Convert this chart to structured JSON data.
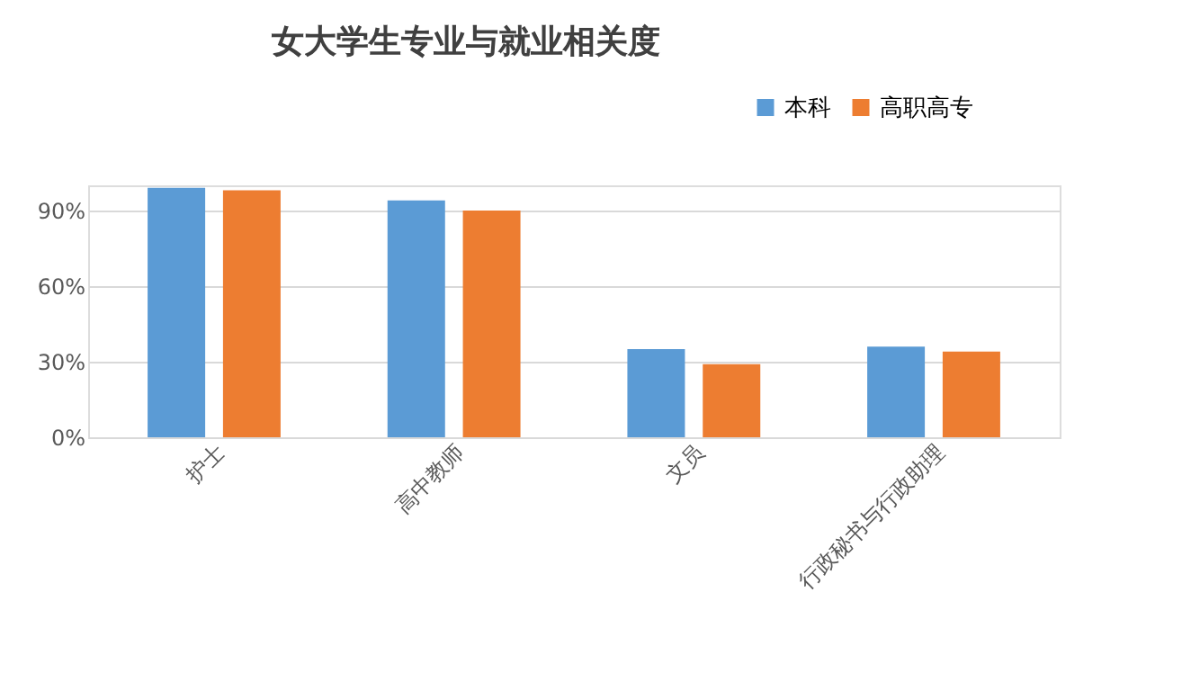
{
  "chart_data": {
    "type": "bar",
    "title": "女大学生专业与就业相关度",
    "categories": [
      "护士",
      "高中教师",
      "文员",
      "行政秘书与行政助理"
    ],
    "series": [
      {
        "name": "本科",
        "color": "#5b9bd5",
        "values": [
          99,
          94,
          35,
          36
        ]
      },
      {
        "name": "高职高专",
        "color": "#ed7d31",
        "values": [
          98,
          90,
          29,
          34
        ]
      }
    ],
    "ylim": [
      0,
      100
    ],
    "yticks": [
      {
        "value": 0,
        "label": "0%"
      },
      {
        "value": 30,
        "label": "30%"
      },
      {
        "value": 60,
        "label": "60%"
      },
      {
        "value": 90,
        "label": "90%"
      }
    ],
    "grid": "y",
    "legend": "top right"
  }
}
